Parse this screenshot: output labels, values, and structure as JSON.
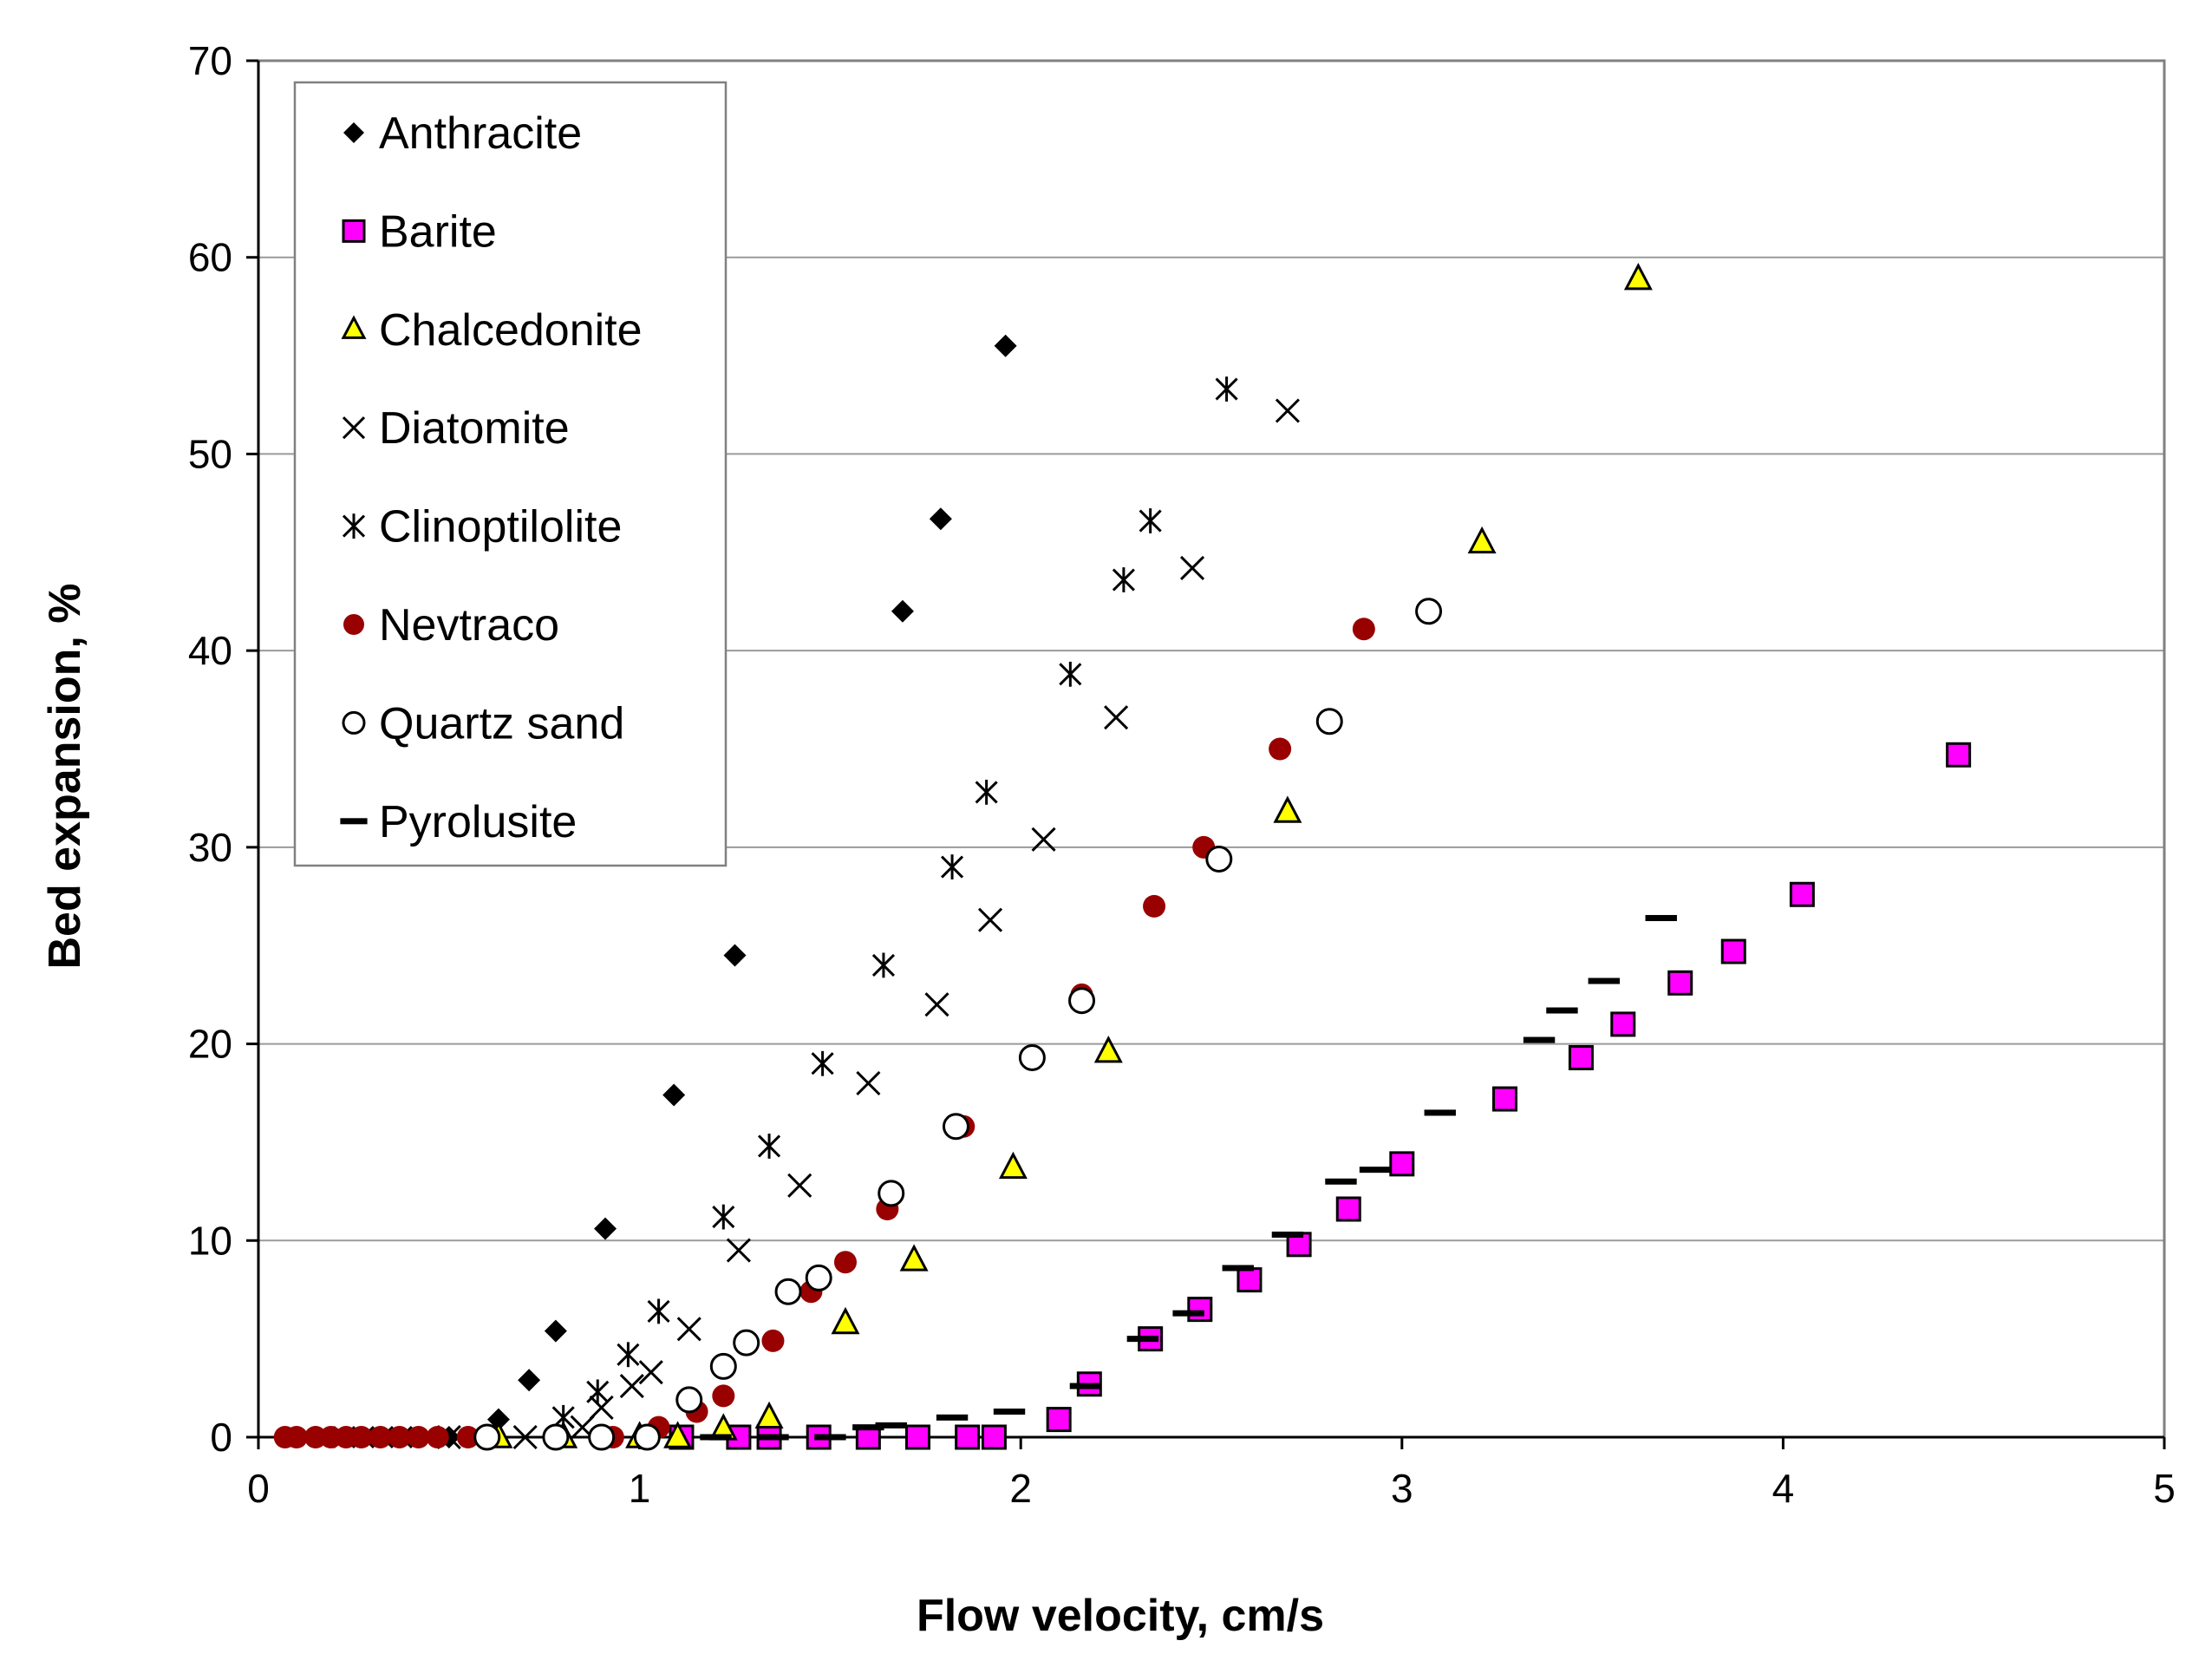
{
  "chart_data": {
    "type": "scatter",
    "title": "",
    "xlabel": "Flow velocity, cm/s",
    "ylabel": "Bed expansion, %",
    "xlim": [
      0,
      5
    ],
    "ylim": [
      0,
      70
    ],
    "xticks": [
      "0",
      "1",
      "2",
      "3",
      "4",
      "5"
    ],
    "yticks": [
      "0",
      "10",
      "20",
      "30",
      "40",
      "50",
      "60",
      "70"
    ],
    "grid": "horizontal",
    "legend_position": "top-left",
    "series": [
      {
        "name": "Anthracite",
        "marker": "diamond",
        "color": "#000000",
        "points": [
          [
            0.1,
            0
          ],
          [
            0.15,
            0
          ],
          [
            0.2,
            0
          ],
          [
            0.25,
            0
          ],
          [
            0.3,
            0
          ],
          [
            0.35,
            0
          ],
          [
            0.4,
            0
          ],
          [
            0.5,
            0
          ],
          [
            0.55,
            0
          ],
          [
            0.63,
            0.9
          ],
          [
            0.71,
            2.9
          ],
          [
            0.78,
            5.4
          ],
          [
            0.91,
            10.6
          ],
          [
            1.09,
            17.4
          ],
          [
            1.25,
            24.5
          ],
          [
            1.69,
            42
          ],
          [
            1.79,
            46.7
          ],
          [
            1.96,
            55.5
          ]
        ]
      },
      {
        "name": "Barite",
        "marker": "square",
        "color": "#ff00ff",
        "points": [
          [
            1.11,
            0
          ],
          [
            1.26,
            0
          ],
          [
            1.34,
            0
          ],
          [
            1.47,
            0
          ],
          [
            1.6,
            0
          ],
          [
            1.73,
            0
          ],
          [
            1.86,
            0
          ],
          [
            1.93,
            0
          ],
          [
            2.1,
            0.9
          ],
          [
            2.18,
            2.7
          ],
          [
            2.34,
            5
          ],
          [
            2.47,
            6.5
          ],
          [
            2.6,
            8
          ],
          [
            2.73,
            9.8
          ],
          [
            2.86,
            11.6
          ],
          [
            3.0,
            13.9
          ],
          [
            3.27,
            17.2
          ],
          [
            3.47,
            19.3
          ],
          [
            3.58,
            21
          ],
          [
            3.73,
            23.1
          ],
          [
            3.87,
            24.7
          ],
          [
            4.05,
            27.6
          ],
          [
            4.46,
            34.7
          ]
        ]
      },
      {
        "name": "Chalcedonite",
        "marker": "triangle",
        "color": "#ffff00",
        "points": [
          [
            0.63,
            0
          ],
          [
            0.8,
            0
          ],
          [
            1.0,
            0
          ],
          [
            1.1,
            0
          ],
          [
            1.22,
            0.4
          ],
          [
            1.34,
            1
          ],
          [
            1.54,
            5.8
          ],
          [
            1.72,
            9
          ],
          [
            1.98,
            13.7
          ],
          [
            2.23,
            19.6
          ],
          [
            2.7,
            31.8
          ],
          [
            3.21,
            45.5
          ],
          [
            3.62,
            58.9
          ]
        ]
      },
      {
        "name": "Diatomite",
        "marker": "x",
        "color": "#000000",
        "points": [
          [
            0.5,
            0
          ],
          [
            0.7,
            0
          ],
          [
            0.85,
            0.5
          ],
          [
            0.9,
            1.5
          ],
          [
            0.98,
            2.6
          ],
          [
            1.03,
            3.3
          ],
          [
            1.13,
            5.5
          ],
          [
            1.26,
            9.5
          ],
          [
            1.42,
            12.8
          ],
          [
            1.6,
            18
          ],
          [
            1.78,
            22
          ],
          [
            1.92,
            26.3
          ],
          [
            2.06,
            30.4
          ],
          [
            2.25,
            36.6
          ],
          [
            2.45,
            44.2
          ],
          [
            2.7,
            52.2
          ]
        ]
      },
      {
        "name": "Clinoptilolite",
        "marker": "asterisk",
        "color": "#000000",
        "points": [
          [
            0.8,
            1
          ],
          [
            0.89,
            2.3
          ],
          [
            0.97,
            4.2
          ],
          [
            1.05,
            6.4
          ],
          [
            1.22,
            11.2
          ],
          [
            1.34,
            14.8
          ],
          [
            1.48,
            19
          ],
          [
            1.64,
            24
          ],
          [
            1.82,
            29
          ],
          [
            1.91,
            32.8
          ],
          [
            2.13,
            38.8
          ],
          [
            2.27,
            43.6
          ],
          [
            2.34,
            46.6
          ],
          [
            2.54,
            53.3
          ]
        ]
      },
      {
        "name": "Nevtraco",
        "marker": "circle-filled",
        "color": "#990000",
        "points": [
          [
            0.07,
            0
          ],
          [
            0.1,
            0
          ],
          [
            0.15,
            0
          ],
          [
            0.19,
            0
          ],
          [
            0.23,
            0
          ],
          [
            0.27,
            0
          ],
          [
            0.32,
            0
          ],
          [
            0.37,
            0
          ],
          [
            0.42,
            0
          ],
          [
            0.47,
            0
          ],
          [
            0.55,
            0
          ],
          [
            0.93,
            0
          ],
          [
            1.05,
            0.5
          ],
          [
            1.15,
            1.3
          ],
          [
            1.22,
            2.1
          ],
          [
            1.35,
            4.9
          ],
          [
            1.45,
            7.4
          ],
          [
            1.54,
            8.9
          ],
          [
            1.65,
            11.6
          ],
          [
            1.85,
            15.8
          ],
          [
            2.16,
            22.5
          ],
          [
            2.35,
            27
          ],
          [
            2.48,
            30
          ],
          [
            2.68,
            35
          ],
          [
            2.9,
            41.1
          ]
        ]
      },
      {
        "name": "Quartz sand",
        "marker": "circle-open",
        "color": "#ffffff",
        "points": [
          [
            0.6,
            0
          ],
          [
            0.78,
            0
          ],
          [
            0.9,
            0
          ],
          [
            1.02,
            0
          ],
          [
            1.13,
            1.9
          ],
          [
            1.22,
            3.6
          ],
          [
            1.28,
            4.8
          ],
          [
            1.39,
            7.4
          ],
          [
            1.47,
            8.1
          ],
          [
            1.66,
            12.4
          ],
          [
            1.83,
            15.8
          ],
          [
            2.03,
            19.3
          ],
          [
            2.16,
            22.2
          ],
          [
            2.52,
            29.4
          ],
          [
            2.81,
            36.4
          ],
          [
            3.07,
            42
          ]
        ]
      },
      {
        "name": "Pyrolusite",
        "marker": "dash",
        "color": "#000000",
        "points": [
          [
            1.2,
            0
          ],
          [
            1.35,
            0
          ],
          [
            1.5,
            0
          ],
          [
            1.6,
            0.5
          ],
          [
            1.66,
            0.6
          ],
          [
            1.82,
            1
          ],
          [
            1.97,
            1.3
          ],
          [
            2.17,
            2.6
          ],
          [
            2.32,
            5
          ],
          [
            2.44,
            6.3
          ],
          [
            2.57,
            8.6
          ],
          [
            2.7,
            10.3
          ],
          [
            2.84,
            13
          ],
          [
            2.93,
            13.6
          ],
          [
            3.1,
            16.5
          ],
          [
            3.36,
            20.2
          ],
          [
            3.42,
            21.7
          ],
          [
            3.53,
            23.2
          ],
          [
            3.68,
            26.4
          ]
        ]
      }
    ]
  }
}
